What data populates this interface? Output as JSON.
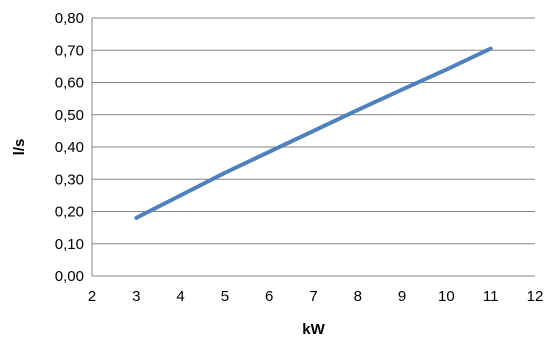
{
  "chart_data": {
    "type": "line",
    "title": "",
    "xlabel": "kW",
    "ylabel": "l/s",
    "xlim": [
      2,
      12
    ],
    "ylim": [
      0,
      0.8
    ],
    "x_ticks": [
      "2",
      "3",
      "4",
      "5",
      "6",
      "7",
      "8",
      "9",
      "10",
      "11",
      "12"
    ],
    "y_ticks": [
      "0,00",
      "0,10",
      "0,20",
      "0,30",
      "0,40",
      "0,50",
      "0,60",
      "0,70",
      "0,80"
    ],
    "grid": "horizontal",
    "legend": "none",
    "series": [
      {
        "color": "#4f81bd",
        "x": [
          3,
          4,
          5,
          6,
          7,
          8,
          9,
          10,
          11
        ],
        "y": [
          0.18,
          0.25,
          0.32,
          0.385,
          0.45,
          0.515,
          0.578,
          0.64,
          0.705
        ]
      }
    ]
  }
}
